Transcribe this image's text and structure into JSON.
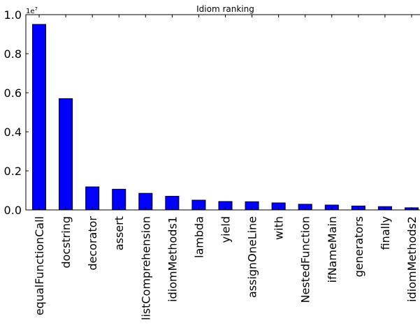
{
  "chart_data": {
    "type": "bar",
    "title": "Idiom ranking",
    "xlabel": "",
    "ylabel": "",
    "y_multiplier_label": "1e7",
    "categories": [
      "equalFunctionCall",
      "docstring",
      "decorator",
      "assert",
      "listComprehension",
      "idiomMethods1",
      "lambda",
      "yield",
      "assignOneLine",
      "with",
      "NestedFunction",
      "ifNameMain",
      "generators",
      "finally",
      "idiomMethods2"
    ],
    "values": [
      9500000,
      5700000,
      1180000,
      1060000,
      850000,
      700000,
      500000,
      430000,
      420000,
      360000,
      290000,
      250000,
      200000,
      170000,
      110000
    ],
    "ylim": [
      0,
      10000000
    ],
    "yticks": [
      0,
      2000000,
      4000000,
      6000000,
      8000000,
      10000000
    ],
    "ytick_labels": [
      "0.0",
      "0.2",
      "0.4",
      "0.6",
      "0.8",
      "1.0"
    ],
    "bar_color": "#0000ff",
    "grid": false,
    "legend": "none"
  }
}
